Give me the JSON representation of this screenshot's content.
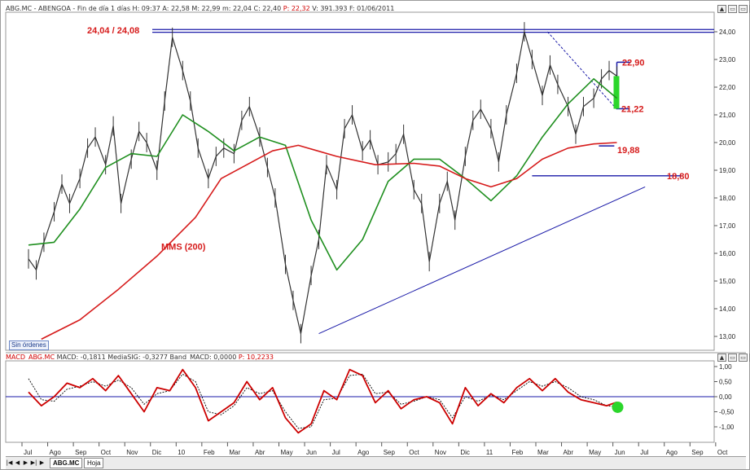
{
  "header": {
    "symbol": "ABG.MC - ABENGOA",
    "period": "Fin de día 1 días",
    "ohlc_text": "H: 09:37  A: 22,58  M: 22,99  m: 22,04  C: 22,40",
    "price_label": "P: 22,32",
    "volume_text": "V: 391.393  F: 01/06/2011"
  },
  "macd_header": {
    "name": "MACD_ABG.MC",
    "macd_text": "MACD: -0,1811  MediaSIG: -0,3277  Band_MACD: 0,0000",
    "price_label": "P: 10,2233"
  },
  "window_buttons": [
    "▲",
    "▭",
    "▭",
    "✕"
  ],
  "status_bar": {
    "nav_buttons": [
      "|◀",
      "◀",
      "▶",
      "▶|",
      "▶"
    ],
    "tabs": [
      "ABG.MC",
      "Hoja"
    ]
  },
  "orders_label": "Sin órdenes",
  "colors": {
    "price": "#333333",
    "ma_short": "#1f8f1f",
    "ma_long": "#d61b1b",
    "lines": "#1a1aa8",
    "annotations": "#d61b1b",
    "macd": "#cc0000",
    "signal": "#000000",
    "highlight": "#2bd62b"
  },
  "chart_data": [
    {
      "type": "line",
      "title": "ABG.MC - ABENGOA",
      "x_labels": [
        "Jul",
        "Ago",
        "Sep",
        "Oct",
        "Nov",
        "Dic",
        "10",
        "Feb",
        "Mar",
        "Abr",
        "May",
        "Jun",
        "Jul",
        "Ago",
        "Sep",
        "Oct",
        "Nov",
        "Dic",
        "11",
        "Feb",
        "Mar",
        "Abr",
        "May",
        "Jun",
        "Jul",
        "Ago",
        "Sep",
        "Oct"
      ],
      "y_ticks": [
        "24,00",
        "23,00",
        "22,00",
        "21,00",
        "20,00",
        "19,00",
        "18,00",
        "17,00",
        "16,00",
        "15,00",
        "14,00",
        "13,00"
      ],
      "ylim": [
        12.7,
        24.3
      ],
      "grid": false,
      "series": [
        {
          "x": [
            0.0,
            0.3,
            0.6,
            1.0,
            1.3,
            1.6,
            2.0,
            2.3,
            2.6,
            3.0,
            3.3,
            3.6,
            4.0,
            4.3,
            4.6,
            5.0,
            5.3,
            5.6,
            6.0,
            6.3,
            6.6,
            7.0,
            7.3,
            7.6,
            8.0,
            8.3,
            8.6,
            9.0,
            9.3,
            9.6,
            10.0,
            10.3,
            10.6,
            11.0,
            11.3,
            11.6,
            12.0,
            12.3,
            12.6,
            13.0,
            13.3,
            13.6,
            14.0,
            14.3,
            14.6,
            15.0,
            15.3,
            15.6,
            16.0,
            16.3,
            16.6,
            17.0,
            17.3,
            17.6,
            18.0,
            18.3,
            18.6,
            19.0,
            19.3,
            19.6,
            20.0,
            20.3,
            20.6,
            21.0,
            21.3,
            21.6,
            22.0,
            22.3,
            22.6,
            22.9
          ],
          "values": [
            15.8,
            15.4,
            16.4,
            17.5,
            18.5,
            17.8,
            18.7,
            19.8,
            20.2,
            19.2,
            20.6,
            17.8,
            19.4,
            20.4,
            20.0,
            19.0,
            21.5,
            23.8,
            22.6,
            21.5,
            19.8,
            18.7,
            19.5,
            19.8,
            19.6,
            20.8,
            21.3,
            20.2,
            19.1,
            18.0,
            15.6,
            14.3,
            13.1,
            15.2,
            16.5,
            19.2,
            18.3,
            20.5,
            21.0,
            19.7,
            20.1,
            19.2,
            19.3,
            19.6,
            20.3,
            18.3,
            17.8,
            15.7,
            17.8,
            18.6,
            17.2,
            19.5,
            20.8,
            21.2,
            20.5,
            19.3,
            21.0,
            22.5,
            24.0,
            23.0,
            21.7,
            22.8,
            22.1,
            21.3,
            20.3,
            21.3,
            21.6,
            22.3,
            22.6,
            22.4
          ]
        },
        {
          "name": "MA",
          "x": [
            0.0,
            1.0,
            2.0,
            3.0,
            4.0,
            5.0,
            6.0,
            7.0,
            8.0,
            9.0,
            10.0,
            11.0,
            12.0,
            13.0,
            14.0,
            15.0,
            16.0,
            17.0,
            18.0,
            19.0,
            20.0,
            21.0,
            22.0,
            22.9
          ],
          "values": [
            16.3,
            16.4,
            17.6,
            19.1,
            19.6,
            19.5,
            21.0,
            20.4,
            19.7,
            20.2,
            19.9,
            17.2,
            15.4,
            16.5,
            18.6,
            19.4,
            19.4,
            18.7,
            17.9,
            18.8,
            20.2,
            21.4,
            22.3,
            21.6
          ]
        },
        {
          "name": "MMS (200)",
          "x": [
            0.5,
            2.0,
            3.5,
            5.0,
            6.5,
            7.5,
            8.5,
            9.5,
            10.5,
            12.0,
            13.5,
            15.0,
            16.0,
            17.0,
            18.0,
            19.0,
            20.0,
            21.0,
            22.0,
            22.9
          ],
          "values": [
            12.9,
            13.6,
            14.7,
            15.9,
            17.3,
            18.7,
            19.2,
            19.7,
            19.9,
            19.5,
            19.2,
            19.25,
            19.15,
            18.7,
            18.4,
            18.7,
            19.4,
            19.8,
            19.95,
            20.0
          ]
        }
      ],
      "annotations": [
        {
          "text": "24,04 / 24,08",
          "y": 24.06
        },
        {
          "text": "22,90",
          "y": 22.9
        },
        {
          "text": "21,22",
          "y": 21.22
        },
        {
          "text": "19,88",
          "y": 19.88
        },
        {
          "text": "18,80",
          "y": 18.8
        },
        {
          "text": "MMS (200)"
        }
      ],
      "trendlines": {
        "resistance": [
          24.04,
          24.08
        ],
        "support_line": {
          "x": [
            11.3,
            24.0
          ],
          "y": [
            13.1,
            18.4
          ]
        },
        "support_18_80": {
          "x": [
            19.6,
            25.4
          ],
          "y": [
            18.8,
            18.8
          ]
        },
        "dashed_downtrend": {
          "x": [
            20.2,
            22.9
          ],
          "y": [
            24.0,
            21.2
          ]
        },
        "target_bracket": {
          "x": [
            22.9,
            23.4
          ],
          "y": [
            22.9,
            21.22
          ]
        },
        "last_bar": {
          "x": 22.9,
          "open": 21.22,
          "close": 22.4
        }
      }
    },
    {
      "type": "line",
      "title": "MACD_ABG.MC",
      "y_ticks": [
        "1,00",
        "0,50",
        "0,00",
        "-0,50",
        "-1,00"
      ],
      "ylim": [
        -1.4,
        1.05
      ],
      "grid": false,
      "series": [
        {
          "name": "MACD",
          "x": [
            0.0,
            0.5,
            1.0,
            1.5,
            2.0,
            2.5,
            3.0,
            3.5,
            4.0,
            4.5,
            5.0,
            5.5,
            6.0,
            6.5,
            7.0,
            7.5,
            8.0,
            8.5,
            9.0,
            9.5,
            10.0,
            10.5,
            11.0,
            11.5,
            12.0,
            12.5,
            13.0,
            13.5,
            14.0,
            14.5,
            15.0,
            15.5,
            16.0,
            16.5,
            17.0,
            17.5,
            18.0,
            18.5,
            19.0,
            19.5,
            20.0,
            20.5,
            21.0,
            21.5,
            22.0,
            22.5,
            22.9
          ],
          "values": [
            0.15,
            -0.3,
            0.0,
            0.45,
            0.3,
            0.6,
            0.2,
            0.7,
            0.1,
            -0.5,
            0.3,
            0.2,
            0.9,
            0.3,
            -0.8,
            -0.5,
            -0.2,
            0.5,
            -0.1,
            0.3,
            -0.7,
            -1.2,
            -0.9,
            0.2,
            -0.1,
            0.9,
            0.7,
            -0.2,
            0.2,
            -0.4,
            -0.1,
            0.0,
            -0.2,
            -0.9,
            0.3,
            -0.3,
            0.1,
            -0.2,
            0.3,
            0.6,
            0.2,
            0.6,
            0.15,
            -0.1,
            -0.2,
            -0.3,
            -0.18
          ]
        },
        {
          "name": "MediaSIG",
          "x": [
            0.0,
            0.5,
            1.0,
            1.5,
            2.0,
            2.5,
            3.0,
            3.5,
            4.0,
            4.5,
            5.0,
            5.5,
            6.0,
            6.5,
            7.0,
            7.5,
            8.0,
            8.5,
            9.0,
            9.5,
            10.0,
            10.5,
            11.0,
            11.5,
            12.0,
            12.5,
            13.0,
            13.5,
            14.0,
            14.5,
            15.0,
            15.5,
            16.0,
            16.5,
            17.0,
            17.5,
            18.0,
            18.5,
            19.0,
            19.5,
            20.0,
            20.5,
            21.0,
            21.5,
            22.0,
            22.5,
            22.9
          ],
          "values": [
            0.6,
            -0.1,
            -0.15,
            0.25,
            0.35,
            0.5,
            0.35,
            0.55,
            0.3,
            -0.25,
            0.1,
            0.2,
            0.75,
            0.5,
            -0.5,
            -0.6,
            -0.3,
            0.3,
            0.1,
            0.2,
            -0.5,
            -1.05,
            -1.0,
            -0.1,
            -0.05,
            0.7,
            0.75,
            0.1,
            0.15,
            -0.25,
            -0.15,
            0.0,
            -0.1,
            -0.7,
            0.0,
            -0.15,
            0.05,
            -0.1,
            0.2,
            0.5,
            0.35,
            0.5,
            0.3,
            0.0,
            -0.1,
            -0.3,
            -0.33
          ]
        }
      ]
    }
  ]
}
